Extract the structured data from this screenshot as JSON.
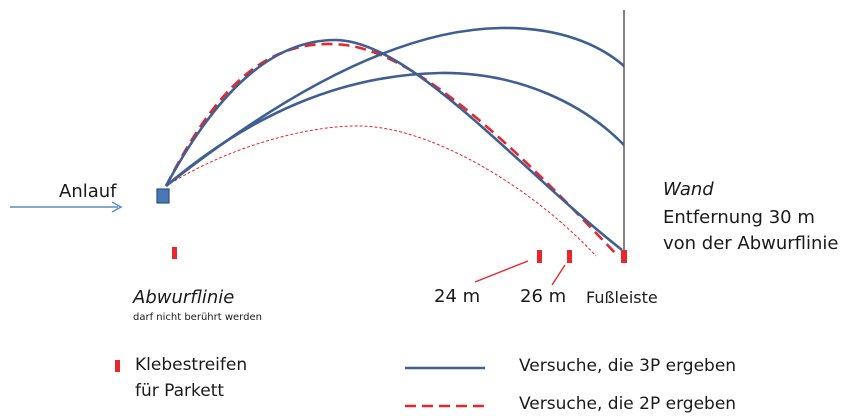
{
  "labels": {
    "anlauf": "Anlauf",
    "wand": "Wand",
    "entfernung": "Entfernung 30 m",
    "von_abwurflinie": "von der Abwurflinie",
    "abwurflinie": "Abwurflinie",
    "abwurflinie_note": "darf nicht berührt werden",
    "mark_24": "24 m",
    "mark_26": "26 m",
    "fussleiste": "Fußleiste"
  },
  "legend": {
    "tape_line1": "Klebestreifen",
    "tape_line2": "für Parkett",
    "solid_label": "Versuche, die 3P ergeben",
    "dashed_label": "Versuche, die 2P ergeben"
  },
  "colors": {
    "trajectory_3p": "#3f5f93",
    "trajectory_2p": "#e8262b",
    "tape": "#e8262b",
    "wall": "#333333",
    "arrow": "#5b8cc6",
    "throw_point": "#4a78b5"
  }
}
